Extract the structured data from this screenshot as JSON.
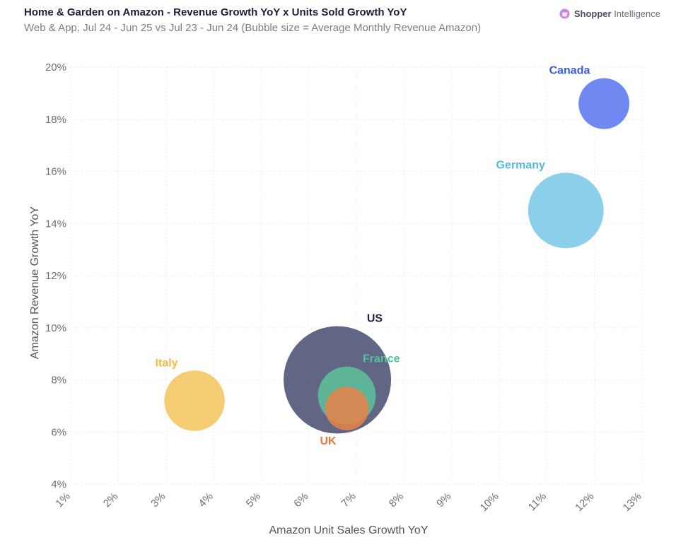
{
  "header": {
    "title": "Home & Garden on Amazon - Revenue Growth YoY x Units Sold Growth YoY",
    "subtitle": "Web & App, Jul 24 - Jun 25 vs Jul 23 - Jun 24 (Bubble size = Average Monthly Revenue Amazon)"
  },
  "brand": {
    "name_strong": "Shopper",
    "name_rest": "Intelligence",
    "icon": "shopper-intelligence-logo-icon"
  },
  "chart_data": {
    "type": "scatter",
    "title": "Home & Garden on Amazon - Revenue Growth YoY x Units Sold Growth YoY",
    "subtitle": "Web & App, Jul 24 - Jun 25 vs Jul 23 - Jun 24 (Bubble size = Average Monthly Revenue Amazon)",
    "xlabel": "Amazon Unit Sales Growth YoY",
    "ylabel": "Amazon Revenue Growth YoY",
    "xlim": [
      1,
      13
    ],
    "ylim": [
      4,
      20
    ],
    "xticks": [
      1,
      2,
      3,
      4,
      5,
      6,
      7,
      8,
      9,
      10,
      11,
      12,
      13
    ],
    "yticks": [
      4,
      6,
      8,
      10,
      12,
      14,
      16,
      18,
      20
    ],
    "tick_suffix": "%",
    "grid": true,
    "size_measure": "Average Monthly Revenue Amazon",
    "size_scale": "relative",
    "points": [
      {
        "name": "Canada",
        "x": 12.2,
        "y": 18.6,
        "size": 34,
        "color": "#5b78f0",
        "label_color": "#3b5ad6",
        "label_pos": "top-left"
      },
      {
        "name": "Germany",
        "x": 11.4,
        "y": 14.5,
        "size": 75,
        "color": "#7cc8e8",
        "label_color": "#5ab8de",
        "label_pos": "top-left"
      },
      {
        "name": "US",
        "x": 6.6,
        "y": 8.0,
        "size": 152,
        "color": "#4b5173",
        "label_color": "#1e2447",
        "label_pos": "top-right"
      },
      {
        "name": "France",
        "x": 6.8,
        "y": 7.4,
        "size": 44,
        "color": "#5cbf98",
        "label_color": "#52c09a",
        "label_pos": "top-right"
      },
      {
        "name": "UK",
        "x": 6.8,
        "y": 6.9,
        "size": 25,
        "color": "#e3834a",
        "label_color": "#e07a3e",
        "label_pos": "bottom-left"
      },
      {
        "name": "Italy",
        "x": 3.6,
        "y": 7.2,
        "size": 48,
        "color": "#f4c461",
        "label_color": "#f0bb4a",
        "label_pos": "top-left"
      }
    ]
  }
}
